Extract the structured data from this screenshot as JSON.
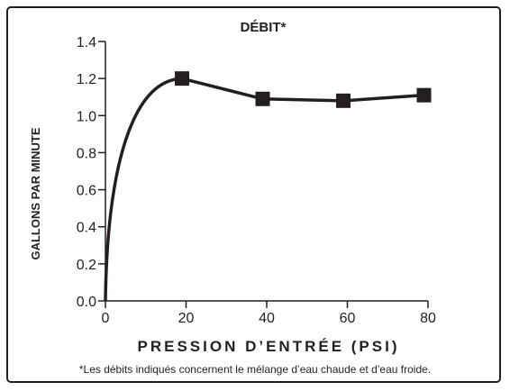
{
  "chart_data": {
    "type": "line",
    "title": "DÉBIT*",
    "xlabel": "PRESSION D’ENTRÉE (PSI)",
    "ylabel": "GALLONS PAR MINUTE",
    "xlim": [
      0,
      80
    ],
    "ylim": [
      0,
      1.4
    ],
    "x_ticks": [
      0,
      20,
      40,
      60,
      80
    ],
    "x_tick_labels": [
      "0",
      "20",
      "40",
      "60",
      "80"
    ],
    "y_ticks": [
      0,
      0.2,
      0.4,
      0.6,
      0.8,
      1.0,
      1.2,
      1.4
    ],
    "y_tick_labels": [
      "0.0",
      "0.2",
      "0.4",
      "0.6",
      "0.8",
      "1.0",
      "1.2",
      "1.4"
    ],
    "series": [
      {
        "x": [
          19,
          39,
          59,
          79
        ],
        "y": [
          1.2,
          1.09,
          1.08,
          1.11
        ],
        "curve_from_origin": true,
        "color": "#231f20"
      }
    ],
    "grid": false,
    "footnote": "*Les débits indiqués concernent le mélange d’eau chaude et d’eau froide."
  }
}
